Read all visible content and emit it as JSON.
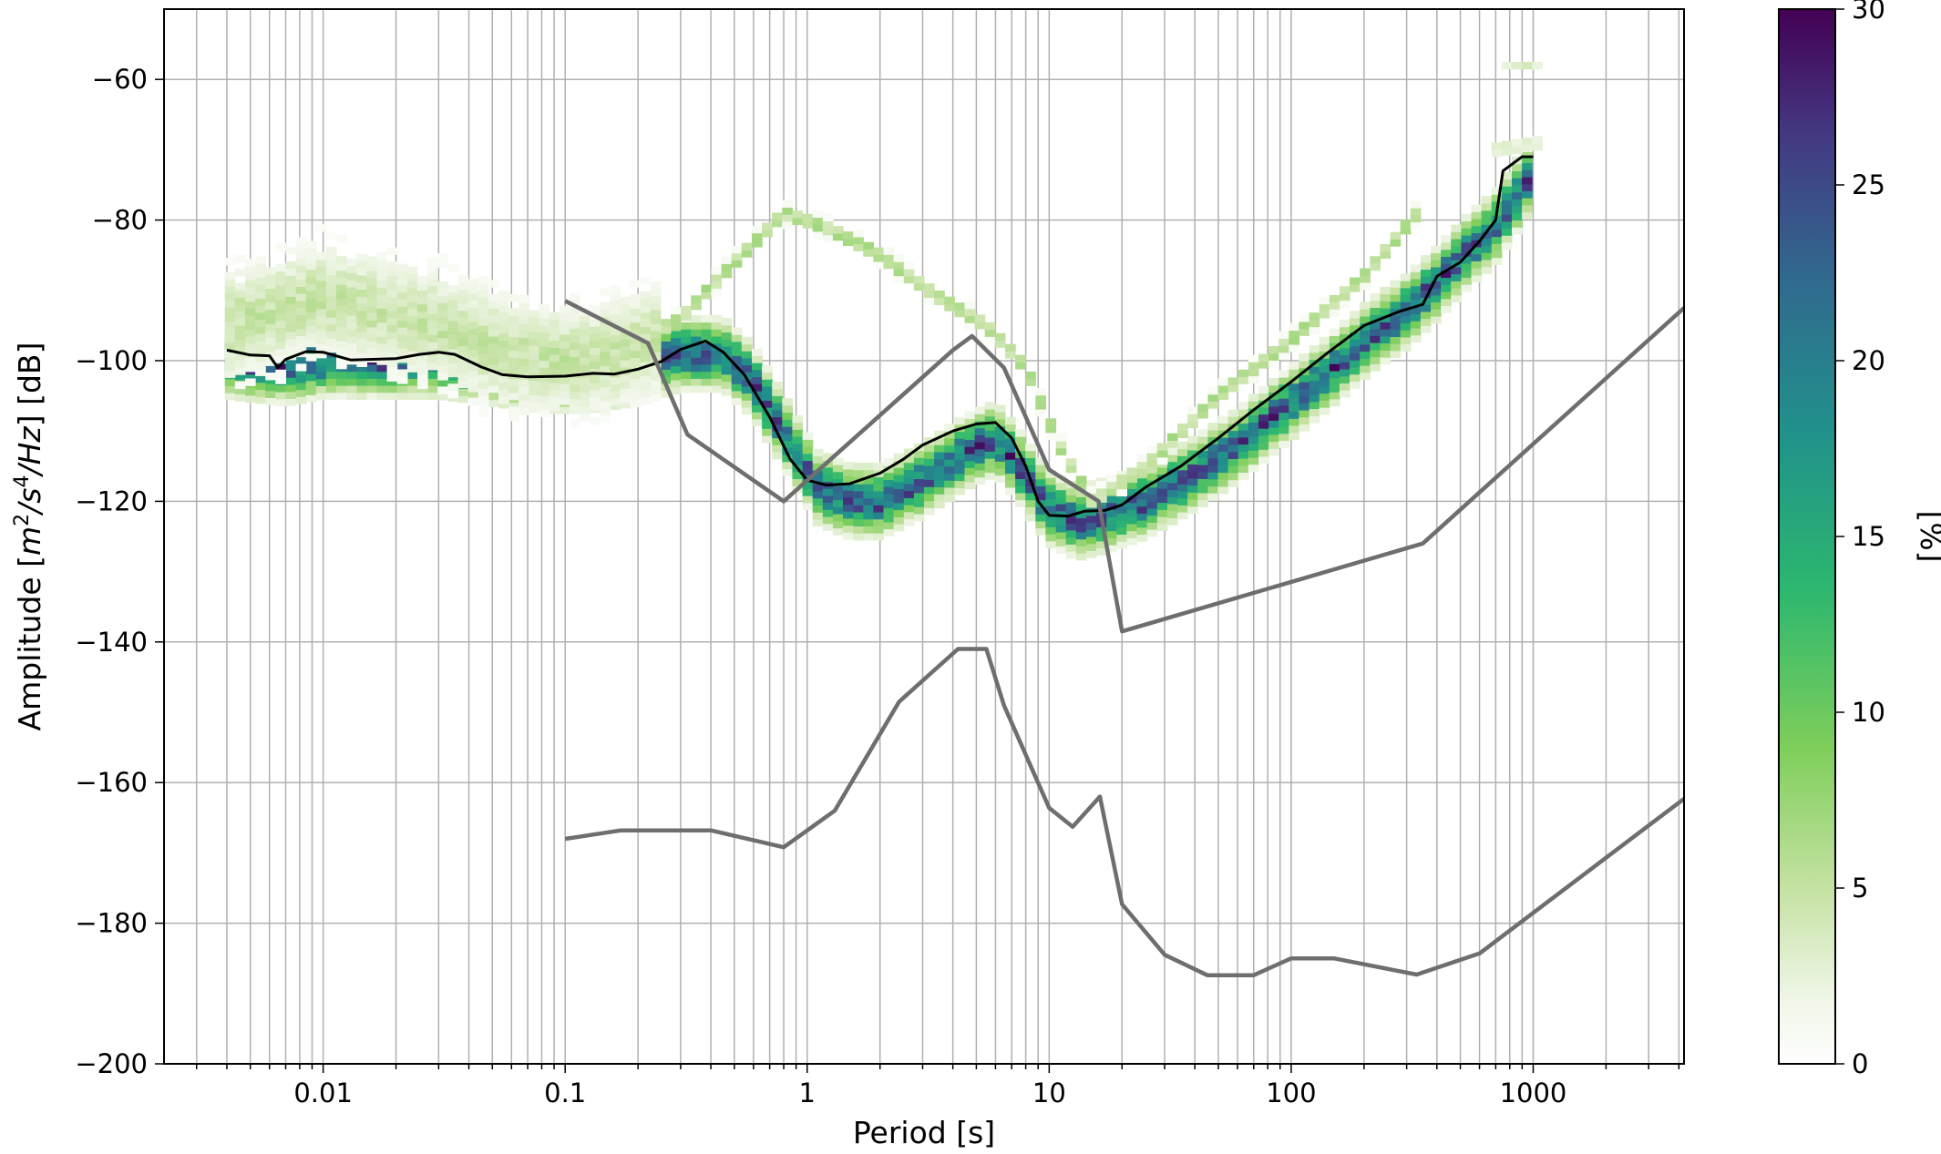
{
  "chart_data": {
    "type": "heatmap",
    "xlabel": "Period [s]",
    "ylabel": "Amplitude [m²/s⁴/Hz] [dB]",
    "ylabel_parts": {
      "main": "Amplitude [",
      "m": "m",
      "s": "/s",
      "hz": "/Hz",
      "end": "] [dB]",
      "sup2": "2",
      "sup4": "4"
    },
    "x_scale": "log",
    "xlim": [
      0.0022,
      4200
    ],
    "ylim": [
      -200,
      -50
    ],
    "xticks": [
      0.01,
      0.1,
      1,
      10,
      100,
      1000
    ],
    "xtick_labels": [
      "0.01",
      "0.1",
      "1",
      "10",
      "100",
      "1000"
    ],
    "yticks": [
      -200,
      -180,
      -160,
      -140,
      -120,
      -100,
      -80,
      -60
    ],
    "ytick_labels": [
      "−200",
      "−180",
      "−160",
      "−140",
      "−120",
      "−100",
      "−80",
      "−60"
    ],
    "grid": true,
    "colorbar": {
      "label": "[%]",
      "range": [
        0,
        30
      ],
      "ticks": [
        0,
        5,
        10,
        15,
        20,
        25,
        30
      ],
      "tick_labels": [
        "0",
        "5",
        "10",
        "15",
        "20",
        "25",
        "30"
      ],
      "colormap": "viridis_r"
    },
    "density_bands": [
      {
        "name": "main",
        "points": [
          [
            0.004,
            -100
          ],
          [
            0.007,
            -101
          ],
          [
            0.01,
            -100
          ],
          [
            0.02,
            -100
          ],
          [
            0.03,
            -100
          ],
          [
            0.05,
            -101
          ],
          [
            0.08,
            -102
          ],
          [
            0.12,
            -102
          ],
          [
            0.2,
            -101
          ],
          [
            0.3,
            -99
          ],
          [
            0.45,
            -99
          ],
          [
            0.6,
            -103
          ],
          [
            0.8,
            -110
          ],
          [
            1.1,
            -118
          ],
          [
            1.5,
            -120
          ],
          [
            2,
            -120
          ],
          [
            3,
            -117
          ],
          [
            4.5,
            -113
          ],
          [
            6,
            -111
          ],
          [
            7.5,
            -115
          ],
          [
            10,
            -121
          ],
          [
            13,
            -123
          ],
          [
            17,
            -122
          ],
          [
            25,
            -120
          ],
          [
            40,
            -116
          ],
          [
            60,
            -112
          ],
          [
            100,
            -106
          ],
          [
            150,
            -101
          ],
          [
            220,
            -96
          ],
          [
            300,
            -93
          ],
          [
            400,
            -89
          ],
          [
            550,
            -84
          ],
          [
            700,
            -81
          ],
          [
            1000,
            -73
          ]
        ],
        "half_width_db": 5,
        "max_pct": 30
      },
      {
        "name": "secondary",
        "points": [
          [
            0.1,
            -97
          ],
          [
            0.2,
            -97
          ],
          [
            0.3,
            -94
          ],
          [
            0.5,
            -86
          ],
          [
            0.8,
            -79
          ],
          [
            1.2,
            -81
          ],
          [
            2,
            -85
          ],
          [
            3.5,
            -91
          ],
          [
            5.5,
            -95
          ],
          [
            8,
            -101
          ],
          [
            11,
            -112
          ],
          [
            15,
            -120
          ],
          [
            25,
            -115
          ],
          [
            50,
            -105
          ],
          [
            100,
            -97
          ],
          [
            200,
            -88
          ],
          [
            350,
            -78
          ]
        ],
        "half_width_db": 1.5,
        "max_pct": 9
      },
      {
        "name": "low-period-spread",
        "points": [
          [
            0.004,
            -95
          ],
          [
            0.01,
            -91
          ],
          [
            0.03,
            -95
          ],
          [
            0.06,
            -99
          ],
          [
            0.12,
            -100
          ],
          [
            0.25,
            -97
          ]
        ],
        "half_width_db": 10,
        "max_pct": 6
      },
      {
        "name": "top-outliers",
        "points": [
          [
            700,
            -70
          ],
          [
            1050,
            -69
          ]
        ],
        "half_width_db": 1.5,
        "max_pct": 4
      },
      {
        "name": "top-outlier-high",
        "points": [
          [
            760,
            -58
          ],
          [
            1060,
            -58
          ]
        ],
        "half_width_db": 1,
        "max_pct": 4
      }
    ],
    "series": [
      {
        "name": "",
        "color": "#000000",
        "x": [
          0.004,
          0.005,
          0.006,
          0.0065,
          0.007,
          0.0085,
          0.01,
          0.013,
          0.016,
          0.02,
          0.025,
          0.03,
          0.035,
          0.045,
          0.055,
          0.07,
          0.1,
          0.13,
          0.16,
          0.2,
          0.25,
          0.3,
          0.38,
          0.45,
          0.55,
          0.7,
          0.85,
          1,
          1.2,
          1.5,
          2,
          2.5,
          3,
          4,
          5,
          6,
          7,
          8,
          9,
          10,
          12,
          14,
          17,
          20,
          25,
          35,
          50,
          70,
          100,
          140,
          200,
          280,
          350,
          400,
          500,
          600,
          700,
          750,
          900,
          1000
        ],
        "y": [
          -98.5,
          -99.2,
          -99.3,
          -101,
          -99.8,
          -98.7,
          -98.8,
          -99.9,
          -99.8,
          -99.7,
          -99.1,
          -98.8,
          -99.1,
          -100.9,
          -102,
          -102.3,
          -102.2,
          -101.8,
          -101.9,
          -101.2,
          -100.1,
          -98.4,
          -97.2,
          -98.8,
          -102,
          -108,
          -114,
          -117,
          -117.7,
          -117.5,
          -116,
          -114,
          -112,
          -110,
          -109,
          -108.8,
          -111,
          -115,
          -120,
          -122,
          -122.1,
          -121.4,
          -121.3,
          -120.5,
          -118,
          -115,
          -111,
          -107,
          -103,
          -99,
          -95,
          -93,
          -92,
          -88,
          -86,
          -83,
          -80,
          -73,
          -71,
          -71
        ]
      },
      {
        "name": "",
        "color": "#6e6e6e",
        "x": [
          0.1,
          0.22,
          0.32,
          0.8,
          4,
          4.8,
          6.5,
          10,
          16,
          20,
          350,
          4200
        ],
        "y": [
          -91.5,
          -97.5,
          -110.5,
          -120,
          -98.5,
          -96.5,
          -101,
          -115.5,
          -120,
          -138.5,
          -126,
          -92.5
        ]
      },
      {
        "name": "",
        "color": "#6e6e6e",
        "x": [
          0.1,
          0.17,
          0.4,
          0.8,
          1.3,
          2.4,
          4.2,
          5.5,
          6.5,
          10,
          12.5,
          16.2,
          20,
          30,
          45,
          70,
          100,
          150,
          330,
          600,
          4200
        ],
        "y": [
          -168,
          -166.8,
          -166.8,
          -169.2,
          -164,
          -148.5,
          -141,
          -141,
          -149,
          -163.6,
          -166.3,
          -162,
          -177.3,
          -184.5,
          -187.4,
          -187.4,
          -185,
          -185,
          -187.3,
          -184.3,
          -162.3
        ]
      }
    ]
  }
}
